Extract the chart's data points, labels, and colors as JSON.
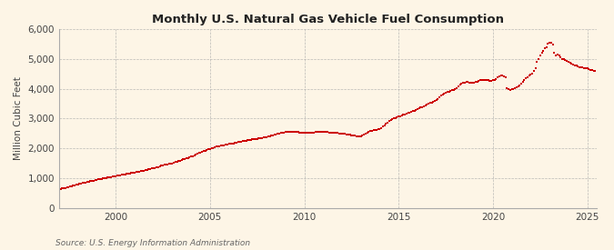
{
  "title": "Monthly U.S. Natural Gas Vehicle Fuel Consumption",
  "ylabel": "Million Cubic Feet",
  "source_text": "Source: U.S. Energy Information Administration",
  "background_color": "#fdf5e6",
  "line_color": "#cc0000",
  "grid_color": "#aaaaaa",
  "xlim_min": 1997.0,
  "xlim_max": 2025.5,
  "ylim_min": 0,
  "ylim_max": 6000,
  "yticks": [
    0,
    1000,
    2000,
    3000,
    4000,
    5000,
    6000
  ],
  "xticks": [
    2000,
    2005,
    2010,
    2015,
    2020,
    2025
  ],
  "values": [
    670,
    640,
    650,
    660,
    670,
    680,
    700,
    720,
    730,
    740,
    760,
    780,
    790,
    810,
    820,
    830,
    840,
    850,
    860,
    880,
    890,
    900,
    910,
    920,
    930,
    950,
    960,
    970,
    985,
    1000,
    1010,
    1020,
    1030,
    1040,
    1050,
    1060,
    1070,
    1080,
    1090,
    1100,
    1110,
    1120,
    1130,
    1140,
    1150,
    1160,
    1170,
    1180,
    1190,
    1200,
    1210,
    1220,
    1230,
    1240,
    1250,
    1270,
    1285,
    1300,
    1310,
    1320,
    1330,
    1340,
    1355,
    1370,
    1390,
    1410,
    1430,
    1440,
    1450,
    1460,
    1470,
    1480,
    1490,
    1510,
    1530,
    1550,
    1570,
    1590,
    1610,
    1630,
    1650,
    1660,
    1680,
    1700,
    1720,
    1740,
    1760,
    1790,
    1820,
    1840,
    1860,
    1880,
    1900,
    1920,
    1940,
    1960,
    1970,
    1990,
    2010,
    2030,
    2050,
    2060,
    2070,
    2080,
    2090,
    2100,
    2110,
    2120,
    2140,
    2150,
    2160,
    2170,
    2180,
    2195,
    2205,
    2215,
    2225,
    2235,
    2245,
    2255,
    2265,
    2275,
    2285,
    2295,
    2305,
    2310,
    2320,
    2330,
    2340,
    2350,
    2360,
    2370,
    2380,
    2395,
    2410,
    2425,
    2440,
    2455,
    2470,
    2485,
    2500,
    2510,
    2520,
    2530,
    2540,
    2545,
    2550,
    2555,
    2555,
    2555,
    2550,
    2545,
    2540,
    2535,
    2530,
    2525,
    2520,
    2515,
    2510,
    2510,
    2515,
    2520,
    2530,
    2540,
    2545,
    2550,
    2555,
    2555,
    2555,
    2550,
    2545,
    2540,
    2535,
    2530,
    2525,
    2520,
    2515,
    2510,
    2505,
    2500,
    2500,
    2490,
    2480,
    2470,
    2460,
    2450,
    2440,
    2430,
    2420,
    2410,
    2400,
    2390,
    2400,
    2420,
    2450,
    2490,
    2530,
    2560,
    2580,
    2590,
    2600,
    2610,
    2620,
    2630,
    2650,
    2680,
    2720,
    2770,
    2820,
    2870,
    2910,
    2950,
    2980,
    3000,
    3020,
    3040,
    3060,
    3080,
    3100,
    3120,
    3140,
    3160,
    3180,
    3200,
    3220,
    3240,
    3260,
    3270,
    3300,
    3330,
    3360,
    3390,
    3420,
    3450,
    3480,
    3500,
    3520,
    3540,
    3560,
    3580,
    3620,
    3660,
    3710,
    3760,
    3810,
    3840,
    3860,
    3880,
    3900,
    3920,
    3940,
    3960,
    3990,
    4030,
    4080,
    4130,
    4180,
    4200,
    4210,
    4220,
    4220,
    4210,
    4200,
    4190,
    4200,
    4220,
    4240,
    4260,
    4280,
    4290,
    4300,
    4300,
    4290,
    4280,
    4270,
    4260,
    4280,
    4300,
    4320,
    4380,
    4420,
    4450,
    4430,
    4410,
    4390,
    4010,
    3980,
    3960,
    3970,
    3990,
    4010,
    4040,
    4080,
    4120,
    4170,
    4220,
    4280,
    4340,
    4390,
    4430,
    4470,
    4500,
    4600,
    4700,
    4900,
    5000,
    5100,
    5200,
    5280,
    5350,
    5400,
    5500,
    5550,
    5530,
    5480,
    5200,
    5100,
    5150,
    5100,
    5050,
    5000,
    4980,
    4950,
    4920,
    4900,
    4870,
    4840,
    4810,
    4790,
    4770,
    4750,
    4730,
    4720,
    4710,
    4700,
    4690,
    4680,
    4660,
    4640,
    4620,
    4600,
    4580
  ],
  "start_year": 1997,
  "start_month": 1
}
